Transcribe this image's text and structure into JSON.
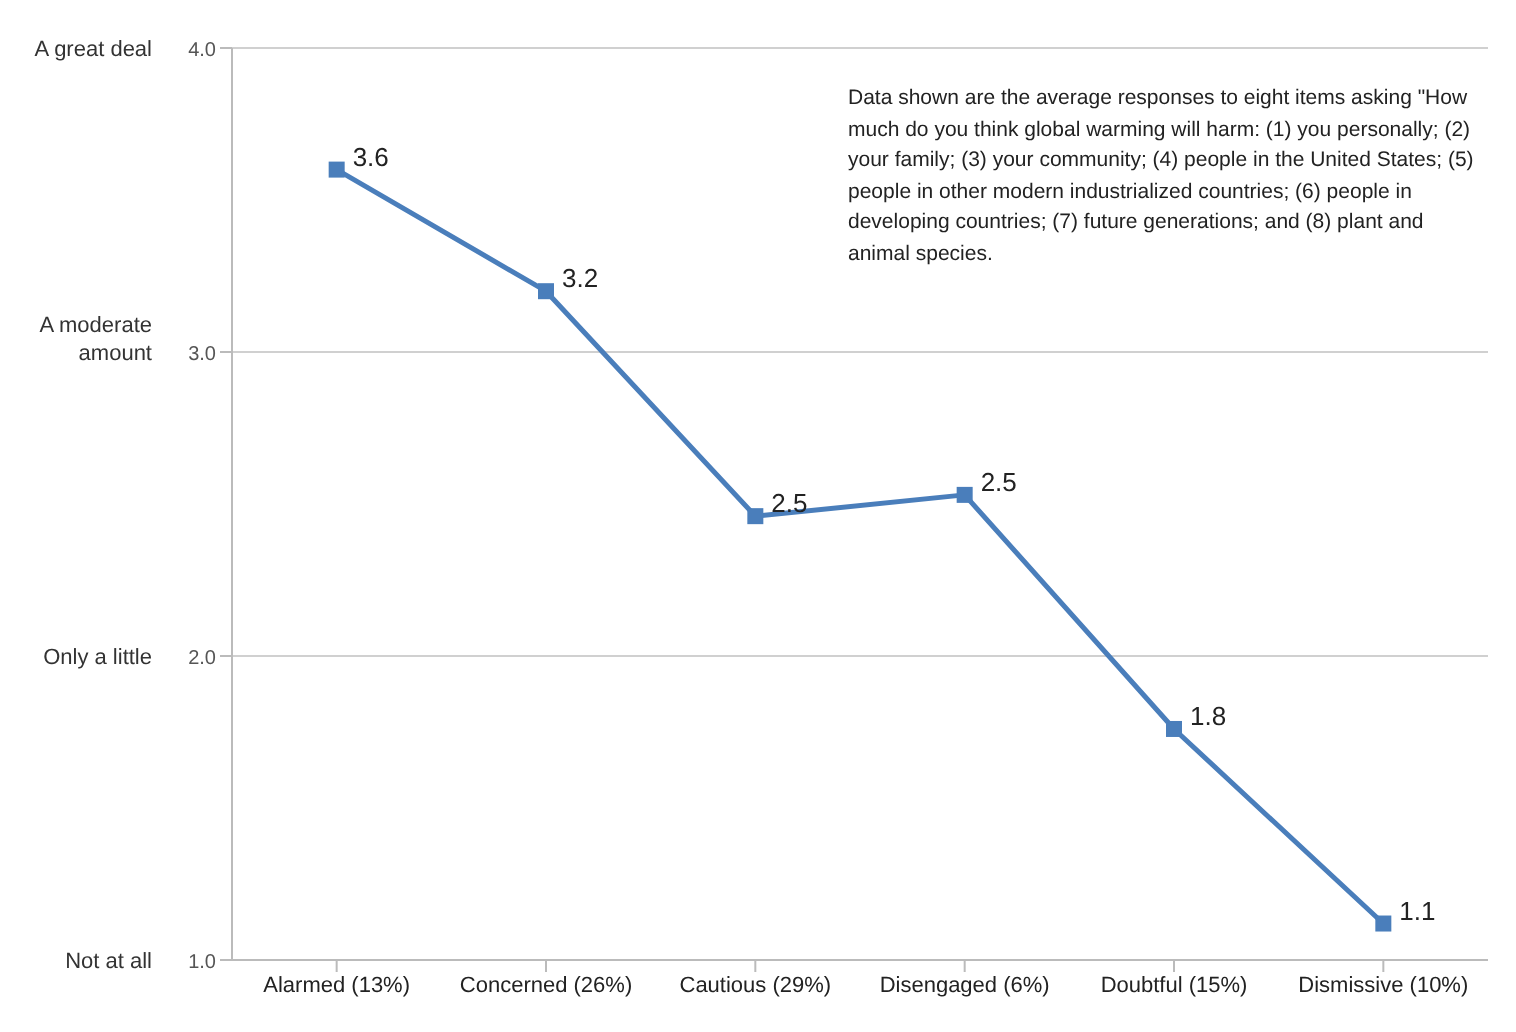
{
  "chart_data": {
    "type": "line",
    "categories": [
      "Alarmed (13%)",
      "Concerned (26%)",
      "Cautious (29%)",
      "Disengaged (6%)",
      "Doubtful (15%)",
      "Dismissive (10%)"
    ],
    "series": [
      {
        "color": "#4a7ebb",
        "values": [
          3.6,
          3.2,
          2.46,
          2.53,
          1.76,
          1.12
        ],
        "value_labels": [
          "3.6",
          "3.2",
          "2.5",
          "2.5",
          "1.8",
          "1.1"
        ]
      }
    ],
    "ylim": [
      1,
      4
    ],
    "yticks": [
      {
        "value": 1,
        "label": "1.0"
      },
      {
        "value": 2,
        "label": "2.0"
      },
      {
        "value": 3,
        "label": "3.0"
      },
      {
        "value": 4,
        "label": "4.0"
      }
    ],
    "annotations": [
      "Not at all",
      "Only a little",
      "A moderate amount",
      "A great deal",
      "Data shown are the average responses to eight items asking \"How much do you think global warming will harm: (1) you personally; (2)  your family; (3) your community; (4) people in the United States; (5)  people in other modern industrialized countries; (6) people in developing countries; (7) future generations; and (8) plant and animal species."
    ],
    "grid": "y",
    "marker": "square",
    "line_style": "solid"
  }
}
